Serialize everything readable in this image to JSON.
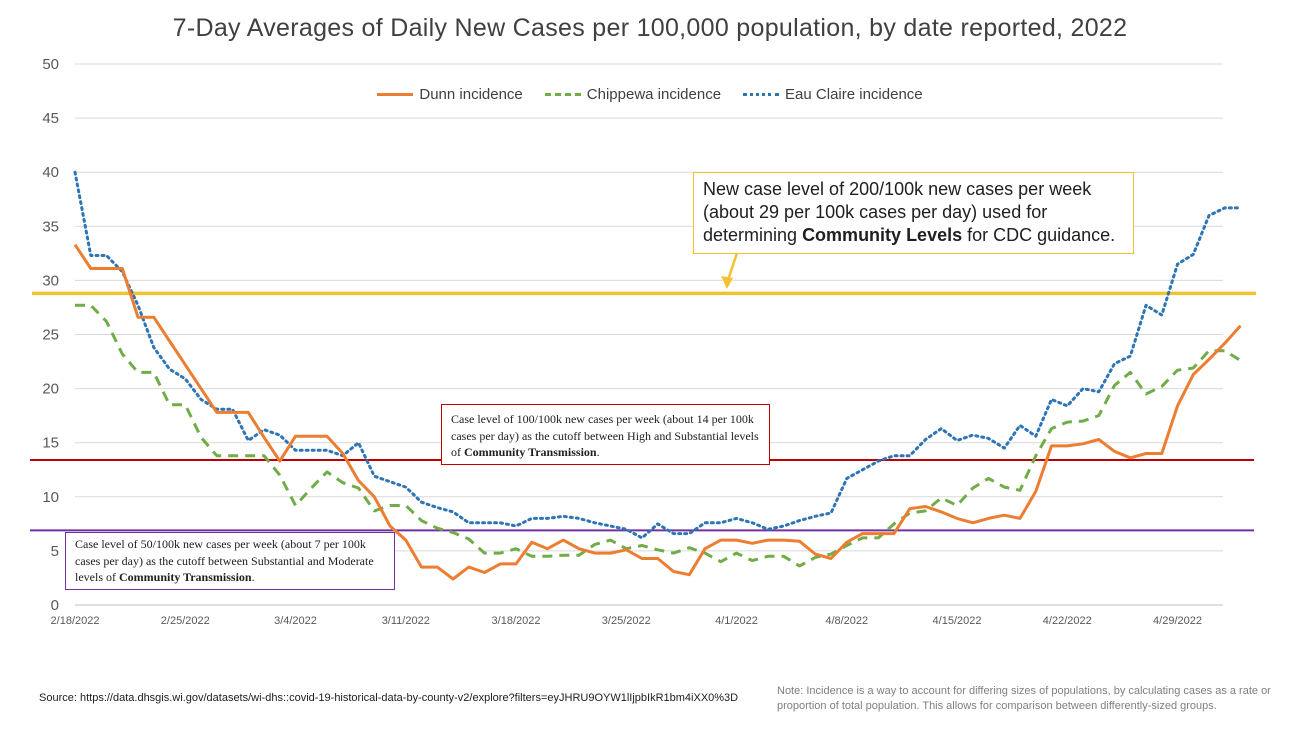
{
  "chart_data": {
    "type": "line",
    "title": "7-Day Averages of Daily New Cases per 100,000 population, by date reported, 2022",
    "xlabel": "",
    "ylabel": "",
    "ylim": [
      0,
      50
    ],
    "yticks": [
      0,
      5,
      10,
      15,
      20,
      25,
      30,
      35,
      40,
      45,
      50
    ],
    "x_start": "2/18/2022",
    "num_days": 75,
    "x_tick_labels": [
      "2/18/2022",
      "2/25/2022",
      "3/4/2022",
      "3/11/2022",
      "3/18/2022",
      "3/25/2022",
      "4/1/2022",
      "4/8/2022",
      "4/15/2022",
      "4/22/2022",
      "4/29/2022"
    ],
    "x_tick_days": [
      0,
      7,
      14,
      21,
      28,
      35,
      42,
      49,
      56,
      63,
      70
    ],
    "grid": true,
    "legend_position": "top",
    "series": [
      {
        "name": "Dunn incidence",
        "color": "#ed7d31",
        "style": "solid",
        "values": [
          33.3,
          31.1,
          31.1,
          31.1,
          26.6,
          26.6,
          24.4,
          22.2,
          20,
          17.8,
          17.8,
          17.8,
          15.5,
          13.3,
          15.6,
          15.6,
          15.6,
          14,
          11.5,
          10,
          7.3,
          6,
          3.5,
          3.5,
          2.4,
          3.5,
          3,
          3.8,
          3.8,
          5.8,
          5.2,
          6,
          5.2,
          4.8,
          4.8,
          5.1,
          4.3,
          4.3,
          3.1,
          2.8,
          5.2,
          6,
          6,
          5.7,
          6,
          6,
          5.9,
          4.7,
          4.3,
          5.8,
          6.6,
          6.6,
          6.6,
          8.9,
          9.1,
          8.6,
          8,
          7.6,
          8,
          8.3,
          8,
          10.5,
          14.7,
          14.7,
          14.9,
          15.3,
          14.2,
          13.6,
          14,
          14,
          18.4,
          21.3,
          22.7,
          24.2,
          25.8
        ]
      },
      {
        "name": "Chippewa incidence",
        "color": "#70ad47",
        "style": "dashed",
        "values": [
          27.7,
          27.7,
          26.2,
          23.2,
          21.5,
          21.5,
          18.5,
          18.5,
          15.5,
          13.8,
          13.8,
          13.8,
          13.8,
          12,
          9.2,
          10.8,
          12.3,
          11.3,
          10.8,
          8.7,
          9.2,
          9.2,
          7.8,
          7.1,
          6.7,
          6.1,
          4.8,
          4.8,
          5.2,
          4.5,
          4.5,
          4.6,
          4.6,
          5.6,
          6,
          5.2,
          5.5,
          5.1,
          4.8,
          5.3,
          4.8,
          4,
          4.8,
          4.1,
          4.5,
          4.5,
          3.6,
          4.4,
          4.7,
          5.5,
          6.2,
          6.2,
          7.5,
          8.5,
          8.7,
          9.9,
          9.2,
          10.8,
          11.7,
          10.9,
          10.6,
          13.8,
          16.3,
          16.9,
          17,
          17.5,
          20.3,
          21.5,
          19.5,
          20.2,
          21.7,
          21.9,
          23.5,
          23.5,
          22.6
        ]
      },
      {
        "name": "Eau Claire incidence",
        "color": "#2e75b6",
        "style": "dotted",
        "values": [
          40,
          32.3,
          32.3,
          30.8,
          27.7,
          23.8,
          21.8,
          20.9,
          19,
          18.1,
          18.1,
          15.2,
          16.2,
          15.7,
          14.3,
          14.3,
          14.3,
          13.8,
          15,
          11.9,
          11.4,
          10.9,
          9.5,
          9,
          8.6,
          7.6,
          7.6,
          7.6,
          7.3,
          8,
          8,
          8.2,
          8,
          7.6,
          7.3,
          7,
          6.2,
          7.5,
          6.6,
          6.6,
          7.6,
          7.6,
          8,
          7.6,
          7,
          7.3,
          7.8,
          8.2,
          8.5,
          11.7,
          12.5,
          13.3,
          13.8,
          13.8,
          15.3,
          16.3,
          15.2,
          15.7,
          15.4,
          14.5,
          16.6,
          15.6,
          19,
          18.4,
          20,
          19.7,
          22.3,
          23,
          27.7,
          26.8,
          31.5,
          32.4,
          36,
          36.7,
          36.7
        ]
      }
    ],
    "reference_lines": [
      {
        "value": 28.8,
        "color": "#f2c230",
        "label": "New case level of 200/100k new cases per week (about 29 per 100k cases per day) used for determining Community Levels for CDC guidance."
      },
      {
        "value": 13.4,
        "color": "#c00000",
        "label": "Case level of 100/100k new cases per week (about 14 per 100k cases per day) as the cutoff between High and Substantial levels of Community Transmission."
      },
      {
        "value": 6.9,
        "color": "#7030a0",
        "label": "Case level of 50/100k new cases per week (about 7 per 100k cases per day) as the cutoff between Substantial and Moderate levels of Community Transmission."
      }
    ]
  },
  "annotations": {
    "cdc": {
      "line1": "New case level of 200/100k new cases per week",
      "line2": "(about 29 per 100k cases per day) used for",
      "line3_pre": "determining ",
      "line3_bold": "Community Levels",
      "line3_post": " for CDC guidance."
    },
    "high": {
      "text": "Case level of 100/100k new cases per week (about 14 per 100k cases per day) as the cutoff between High and Substantial levels of ",
      "bold": "Community Transmission",
      "post": "."
    },
    "moderate": {
      "text": "Case level of 50/100k new cases per week (about 7 per 100k cases per day) as the cutoff between Substantial and Moderate levels of ",
      "bold": "Community Transmission",
      "post": "."
    }
  },
  "footer": {
    "source": "Source: https://data.dhsgis.wi.gov/datasets/wi-dhs::covid-19-historical-data-by-county-v2/explore?filters=eyJHRU9OYW1lIjpbIkR1bm4iXX0%3D",
    "note": "Note:  Incidence is a way to account for differing sizes of populations, by calculating cases as a rate or proportion of total population.  This allows for comparison between differently-sized groups."
  }
}
